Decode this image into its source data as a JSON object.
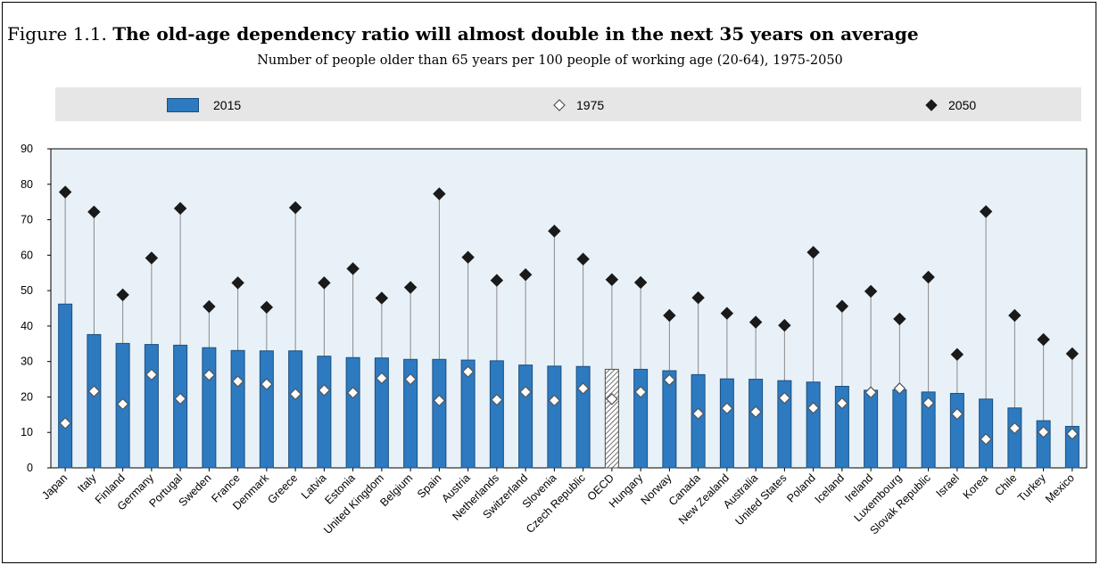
{
  "figure": {
    "number": "Figure 1.1.",
    "title": "The old-age dependency ratio will almost double in the next 35 years on average",
    "subtitle": "Number of people older than 65 years per 100 people of working age (20-64), 1975-2050"
  },
  "legend": {
    "bar_label": "2015",
    "open_marker_label": "1975",
    "filled_marker_label": "2050"
  },
  "colors": {
    "bar": "#2d7ac0",
    "bar_edge": "#1a4f80",
    "oecd_hatch": "#4d4d4d",
    "marker_filled": "#1a1a1a",
    "legend_bg": "#e6e6e6",
    "plot_bg": "#e8f1f8"
  },
  "chart_data": {
    "type": "bar",
    "title": "The old-age dependency ratio will almost double in the next 35 years on average",
    "ylim": [
      0,
      90
    ],
    "yticks": [
      0,
      10,
      20,
      30,
      40,
      50,
      60,
      70,
      80,
      90
    ],
    "grid": false,
    "legend_position": "top",
    "highlighted_category": "OECD",
    "categories": [
      "Japan",
      "Italy",
      "Finland",
      "Germany",
      "Portugal",
      "Sweden",
      "France",
      "Denmark",
      "Greece",
      "Latvia",
      "Estonia",
      "United Kingdom",
      "Belgium",
      "Spain",
      "Austria",
      "Netherlands",
      "Switzerland",
      "Slovenia",
      "Czech Republic",
      "OECD",
      "Hungary",
      "Norway",
      "Canada",
      "New Zealand",
      "Australia",
      "United States",
      "Poland",
      "Iceland",
      "Ireland",
      "Luxembourg",
      "Slovak Republic",
      "Israel",
      "Korea",
      "Chile",
      "Turkey",
      "Mexico"
    ],
    "series": [
      {
        "name": "2015",
        "kind": "bar",
        "values": [
          46.2,
          37.6,
          35.1,
          34.8,
          34.6,
          33.9,
          33.1,
          33.0,
          33.0,
          31.5,
          31.1,
          31.0,
          30.6,
          30.6,
          30.4,
          30.2,
          29.0,
          28.7,
          28.6,
          27.8,
          27.8,
          27.4,
          26.3,
          25.1,
          25.0,
          24.6,
          24.2,
          23.0,
          21.9,
          22.0,
          21.4,
          21.0,
          19.4,
          16.9,
          13.3,
          11.7
        ]
      },
      {
        "name": "1975",
        "kind": "open-diamond",
        "values": [
          12.6,
          21.6,
          18.0,
          26.3,
          19.5,
          26.2,
          24.4,
          23.6,
          20.8,
          21.9,
          21.2,
          25.3,
          25.0,
          19.0,
          27.1,
          19.2,
          21.4,
          19.0,
          22.4,
          19.4,
          21.4,
          24.8,
          15.3,
          16.8,
          15.8,
          19.7,
          16.9,
          18.2,
          21.3,
          22.4,
          18.3,
          15.2,
          8.1,
          11.2,
          10.1,
          9.6
        ]
      },
      {
        "name": "2050",
        "kind": "filled-diamond",
        "values": [
          77.8,
          72.2,
          48.8,
          59.2,
          73.2,
          45.5,
          52.2,
          45.3,
          73.4,
          52.2,
          56.2,
          47.9,
          50.9,
          77.3,
          59.4,
          52.9,
          54.5,
          66.8,
          58.9,
          53.1,
          52.3,
          43.0,
          48.0,
          43.6,
          41.1,
          40.2,
          60.8,
          45.6,
          49.8,
          42.0,
          53.8,
          32.0,
          72.3,
          43.0,
          36.2,
          32.2
        ]
      }
    ]
  }
}
